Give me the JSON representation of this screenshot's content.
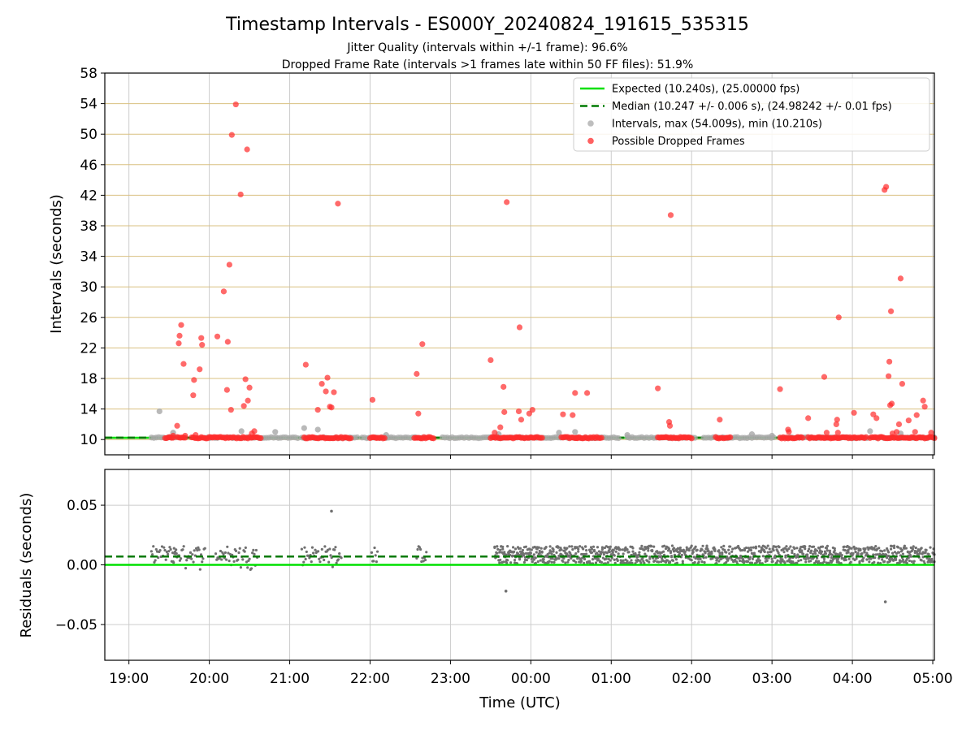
{
  "title": "Timestamp Intervals - ES000Y_20240824_191615_535315",
  "subtitle_1": "Jitter Quality (intervals within +/-1 frame): 96.6%",
  "subtitle_2": "Dropped Frame Rate (intervals >1 frames late within 50 FF files): 51.9%",
  "colors": {
    "expected": "#00e000",
    "median": "#007a00",
    "intervals": "#a8a8a8",
    "dropped": "#ff2b2b",
    "residuals": "#707070",
    "hgrid_top": "#d9c080",
    "grid": "#cccccc"
  },
  "chart_data": [
    {
      "type": "scatter",
      "panel": "intervals",
      "ylabel": "Intervals (seconds)",
      "xlabel": "",
      "x_unit": "hours since 19:00 UTC",
      "xlim": [
        -0.3,
        10.02
      ],
      "ylim": [
        8.0,
        58.0
      ],
      "yticks": [
        10,
        14,
        18,
        22,
        26,
        30,
        34,
        38,
        42,
        46,
        50,
        54,
        58
      ],
      "grid": true,
      "legend_position": "top-right",
      "legend": [
        {
          "label": "Expected (10.240s), (25.00000 fps)",
          "kind": "solid-line",
          "series": "expected"
        },
        {
          "label": "Median (10.247 +/- 0.006 s), (24.98242 +/- 0.01 fps)",
          "kind": "dashed-line",
          "series": "median"
        },
        {
          "label": "Intervals, max (54.009s), min (10.210s)",
          "kind": "marker",
          "series": "intervals"
        },
        {
          "label": "Possible Dropped Frames",
          "kind": "marker",
          "series": "dropped"
        }
      ],
      "expected_value": 10.24,
      "median_value": 10.247,
      "series": [
        {
          "name": "Intervals",
          "band_segments": [
            [
              0.28,
              0.6
            ],
            [
              0.95,
              1.1
            ],
            [
              1.2,
              2.1
            ],
            [
              2.15,
              2.85
            ],
            [
              2.9,
              3.7
            ],
            [
              3.9,
              6.1
            ],
            [
              6.2,
              7.05
            ],
            [
              7.15,
              8.05
            ],
            [
              8.1,
              9.2
            ],
            [
              9.3,
              10.02
            ]
          ],
          "band_value": 10.24,
          "points": [
            [
              0.38,
              13.7
            ],
            [
              0.55,
              10.9
            ],
            [
              1.4,
              11.1
            ],
            [
              1.82,
              11.0
            ],
            [
              2.18,
              11.5
            ],
            [
              2.35,
              11.3
            ],
            [
              3.2,
              10.6
            ],
            [
              4.6,
              10.7
            ],
            [
              5.35,
              10.9
            ],
            [
              5.55,
              11.0
            ],
            [
              6.2,
              10.6
            ],
            [
              7.75,
              10.7
            ],
            [
              8.0,
              10.5
            ],
            [
              9.22,
              11.1
            ],
            [
              9.6,
              10.8
            ]
          ]
        },
        {
          "name": "Possible Dropped Frames",
          "band_segments": [
            [
              0.45,
              0.55
            ],
            [
              0.6,
              0.72
            ],
            [
              0.78,
              1.65
            ],
            [
              2.18,
              2.78
            ],
            [
              3.0,
              3.18
            ],
            [
              3.55,
              3.8
            ],
            [
              4.5,
              5.15
            ],
            [
              5.38,
              5.88
            ],
            [
              5.56,
              5.58
            ],
            [
              6.58,
              7.0
            ],
            [
              7.3,
              7.48
            ],
            [
              8.1,
              8.38
            ],
            [
              8.45,
              9.18
            ],
            [
              9.22,
              10.02
            ]
          ],
          "band_value": 10.24,
          "points": [
            [
              0.55,
              10.5
            ],
            [
              0.6,
              11.8
            ],
            [
              0.62,
              22.6
            ],
            [
              0.63,
              23.6
            ],
            [
              0.65,
              25.0
            ],
            [
              0.68,
              19.9
            ],
            [
              0.7,
              10.5
            ],
            [
              0.8,
              15.8
            ],
            [
              0.81,
              17.8
            ],
            [
              0.83,
              10.6
            ],
            [
              0.88,
              19.2
            ],
            [
              0.9,
              23.3
            ],
            [
              0.91,
              22.4
            ],
            [
              1.1,
              23.5
            ],
            [
              1.18,
              29.4
            ],
            [
              1.22,
              16.5
            ],
            [
              1.23,
              22.8
            ],
            [
              1.25,
              32.9
            ],
            [
              1.27,
              13.9
            ],
            [
              1.28,
              49.9
            ],
            [
              1.33,
              53.9
            ],
            [
              1.39,
              42.1
            ],
            [
              1.43,
              14.4
            ],
            [
              1.45,
              17.9
            ],
            [
              1.47,
              48.0
            ],
            [
              1.48,
              15.1
            ],
            [
              1.5,
              16.8
            ],
            [
              1.53,
              10.8
            ],
            [
              1.56,
              11.1
            ],
            [
              2.2,
              19.8
            ],
            [
              2.35,
              13.9
            ],
            [
              2.4,
              17.3
            ],
            [
              2.45,
              16.3
            ],
            [
              2.47,
              18.1
            ],
            [
              2.5,
              14.3
            ],
            [
              2.52,
              14.2
            ],
            [
              2.55,
              16.2
            ],
            [
              2.6,
              40.9
            ],
            [
              3.03,
              15.2
            ],
            [
              3.58,
              18.6
            ],
            [
              3.6,
              13.4
            ],
            [
              3.65,
              22.5
            ],
            [
              4.5,
              20.4
            ],
            [
              4.55,
              10.9
            ],
            [
              4.62,
              11.6
            ],
            [
              4.66,
              16.9
            ],
            [
              4.67,
              13.6
            ],
            [
              4.7,
              41.1
            ],
            [
              4.85,
              13.7
            ],
            [
              4.86,
              24.7
            ],
            [
              4.88,
              12.6
            ],
            [
              4.98,
              13.4
            ],
            [
              5.02,
              13.9
            ],
            [
              5.4,
              13.3
            ],
            [
              5.52,
              13.2
            ],
            [
              5.55,
              16.1
            ],
            [
              5.7,
              16.1
            ],
            [
              6.58,
              16.7
            ],
            [
              6.72,
              12.3
            ],
            [
              6.73,
              11.8
            ],
            [
              6.74,
              39.4
            ],
            [
              7.35,
              12.6
            ],
            [
              8.1,
              16.6
            ],
            [
              8.2,
              11.3
            ],
            [
              8.21,
              11.0
            ],
            [
              8.45,
              12.8
            ],
            [
              8.65,
              18.2
            ],
            [
              8.68,
              10.9
            ],
            [
              8.8,
              12.0
            ],
            [
              8.81,
              12.6
            ],
            [
              8.82,
              10.9
            ],
            [
              8.83,
              26.0
            ],
            [
              9.02,
              13.5
            ],
            [
              9.26,
              13.3
            ],
            [
              9.3,
              12.8
            ],
            [
              9.4,
              42.7
            ],
            [
              9.42,
              43.1
            ],
            [
              9.45,
              18.3
            ],
            [
              9.46,
              20.2
            ],
            [
              9.47,
              14.5
            ],
            [
              9.48,
              26.8
            ],
            [
              9.49,
              14.7
            ],
            [
              9.5,
              10.8
            ],
            [
              9.55,
              11.0
            ],
            [
              9.58,
              12.0
            ],
            [
              9.6,
              31.1
            ],
            [
              9.62,
              17.3
            ],
            [
              9.7,
              12.5
            ],
            [
              9.78,
              11.0
            ],
            [
              9.8,
              13.2
            ],
            [
              9.88,
              15.1
            ],
            [
              9.9,
              14.3
            ],
            [
              9.98,
              10.9
            ]
          ]
        }
      ]
    },
    {
      "type": "scatter",
      "panel": "residuals",
      "ylabel": "Residuals (seconds)",
      "xlabel": "Time (UTC)",
      "xlim": [
        -0.3,
        10.02
      ],
      "ylim": [
        -0.08,
        0.08
      ],
      "yticks": [
        -0.05,
        0.0,
        0.05
      ],
      "ytick_labels": [
        "−0.05",
        "0.00",
        "0.05"
      ],
      "xticks": [
        0,
        1,
        2,
        3,
        4,
        5,
        6,
        7,
        8,
        9,
        10
      ],
      "xtick_labels": [
        "19:00",
        "20:00",
        "21:00",
        "22:00",
        "23:00",
        "00:00",
        "01:00",
        "02:00",
        "03:00",
        "04:00",
        "05:00"
      ],
      "grid": true,
      "expected_value": 0.0,
      "median_value": 0.007,
      "series": [
        {
          "name": "Residuals",
          "clusters": [
            [
              0.28,
              0.6
            ],
            [
              0.55,
              0.95
            ],
            [
              1.08,
              1.6
            ],
            [
              2.15,
              2.65
            ],
            [
              3.02,
              3.1
            ],
            [
              3.58,
              3.7
            ]
          ],
          "dense_range": [
            4.55,
            10.02
          ],
          "outliers": [
            [
              2.52,
              0.045
            ],
            [
              4.69,
              -0.022
            ],
            [
              9.41,
              -0.031
            ]
          ]
        }
      ]
    }
  ]
}
